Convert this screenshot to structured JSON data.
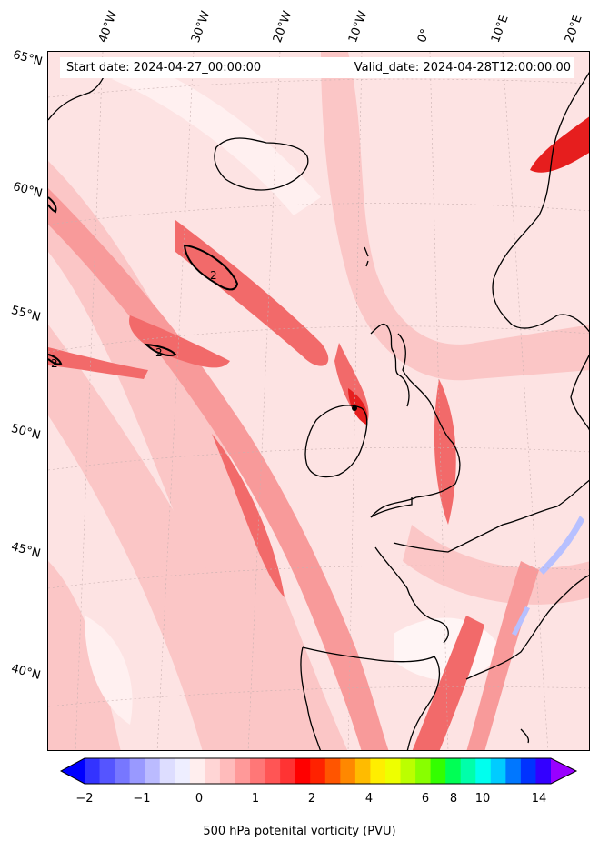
{
  "header": {
    "start_date": "Start date: 2024-04-27_00:00:00",
    "valid_date": "Valid_date: 2024-04-28T12:00:00.00"
  },
  "longitude_labels": [
    "40°W",
    "30°W",
    "20°W",
    "10°W",
    "0°",
    "10°E",
    "20°E"
  ],
  "latitude_labels": [
    "65°N",
    "60°N",
    "55°N",
    "50°N",
    "45°N",
    "40°N"
  ],
  "contour_labels": [
    "2",
    "2",
    "2"
  ],
  "colorbar": {
    "title": "500 hPa potenital vorticity (PVU)",
    "ticks": [
      "−2",
      "−1",
      "0",
      "1",
      "2",
      "4",
      "6",
      "8",
      "10",
      "14"
    ],
    "colors": [
      "#0000ff",
      "#3333ff",
      "#5555ff",
      "#7777ff",
      "#9999ff",
      "#bbbbff",
      "#ddddff",
      "#eeeeff",
      "#ffeeee",
      "#ffd5d5",
      "#ffbbbb",
      "#ff9999",
      "#ff7777",
      "#ff5555",
      "#ff3333",
      "#ff0000",
      "#ff2200",
      "#ff5500",
      "#ff8800",
      "#ffbb00",
      "#ffee00",
      "#eeff00",
      "#bbff00",
      "#88ff00",
      "#33ff00",
      "#00ff55",
      "#00ffaa",
      "#00ffee",
      "#00ccff",
      "#0077ff",
      "#0033ff",
      "#3300ff",
      "#9900ff"
    ]
  },
  "map": {
    "projection": "conic",
    "field": "500 hPa potential vorticity",
    "colors": {
      "background": "#fde3e3",
      "light": "#fbc6c6",
      "medium": "#f89a9a",
      "strong": "#f26a6a",
      "max": "#e61e1e",
      "negative": "#b7c0ff"
    }
  }
}
